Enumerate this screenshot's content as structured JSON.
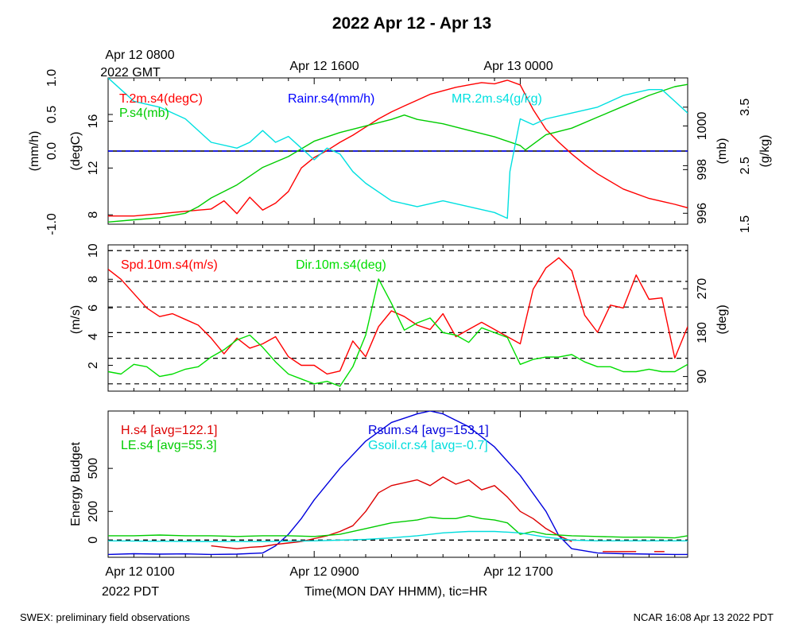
{
  "figure": {
    "title": "2022 Apr 12 - Apr 13",
    "top_axis": {
      "first_tick": "Apr 12 0800",
      "first_tick_line2": "2022 GMT",
      "ticks": [
        "Apr 12 1600",
        "Apr 13 0000"
      ]
    },
    "bottom_axis": {
      "first_tick": "Apr 12 0100",
      "first_tick_line2": "2022 PDT",
      "ticks": [
        "Apr 12 0900",
        "Apr 12 1700"
      ],
      "label": "Time(MON DAY HHMM), tic=HR"
    },
    "footer_left": "SWEX: preliminary field observations",
    "footer_right": "NCAR 16:08 Apr 13 2022 PDT"
  },
  "chart_data": [
    {
      "type": "line",
      "panel": "meteorology",
      "x_unit": "hours since Apr 12 0100 PDT",
      "xlim": [
        0,
        22.5
      ],
      "axes": {
        "rain": {
          "label": "(mm/h)",
          "lim": [
            -1.0,
            1.0
          ],
          "ticks": [
            "-1.0",
            "0.0",
            "0.5",
            "1.0"
          ],
          "tick_values": [
            -1.0,
            0.0,
            0.5,
            1.0
          ],
          "side": "left-outer"
        },
        "temp": {
          "label": "(degC)",
          "lim": [
            7.2,
            19.7
          ],
          "ticks": [
            "8",
            "12",
            "16"
          ],
          "tick_values": [
            8,
            12,
            16
          ],
          "side": "left-inner"
        },
        "press": {
          "label": "(mb)",
          "lim": [
            995.5,
            1002.2
          ],
          "ticks": [
            "996",
            "998",
            "1000"
          ],
          "tick_values": [
            996,
            998,
            1000
          ],
          "side": "right-inner"
        },
        "mr": {
          "label": "(g/kg)",
          "lim": [
            1.5,
            4.0
          ],
          "ticks": [
            "1.5",
            "2.5",
            "3.5"
          ],
          "tick_values": [
            1.5,
            2.5,
            3.5
          ],
          "side": "right-outer"
        }
      },
      "legend": {
        "temp": "T.2m.s4(degC)",
        "press": "P.s4(mb)",
        "rain": "Rainr.s4(mm/h)",
        "mr": "MR.2m.s4(g/kg)"
      },
      "series": [
        {
          "key": "temp",
          "axis": "temp",
          "color": "#ff0000",
          "x": [
            0,
            1,
            2,
            3,
            4,
            4.5,
            5,
            5.5,
            6,
            6.5,
            7,
            7.5,
            8,
            8.5,
            9,
            9.5,
            10,
            10.5,
            11,
            11.5,
            12,
            12.5,
            13,
            13.5,
            14,
            14.5,
            15,
            15.5,
            16,
            16.5,
            17,
            17.5,
            18,
            18.5,
            19,
            20,
            21,
            22,
            22.5
          ],
          "y": [
            7.9,
            7.9,
            8.1,
            8.3,
            8.5,
            9.2,
            8.1,
            9.5,
            8.4,
            9.0,
            10.0,
            12.0,
            12.9,
            13.5,
            14.2,
            14.8,
            15.5,
            16.2,
            16.8,
            17.3,
            17.8,
            18.3,
            18.6,
            18.9,
            19.1,
            19.3,
            19.2,
            19.5,
            19.1,
            17.0,
            15.3,
            14.2,
            13.2,
            12.3,
            11.5,
            10.2,
            9.4,
            8.9,
            8.6
          ]
        },
        {
          "key": "press",
          "axis": "press",
          "color": "#00cc00",
          "x": [
            0,
            1,
            2,
            3,
            3.5,
            4,
            5,
            6,
            7,
            8,
            9,
            10,
            11,
            11.5,
            12,
            13,
            14,
            15,
            16,
            16.2,
            17,
            18,
            19,
            20,
            21,
            22,
            22.5
          ],
          "y": [
            995.6,
            995.7,
            995.8,
            996.0,
            996.3,
            996.7,
            997.3,
            998.1,
            998.6,
            999.3,
            999.7,
            1000.0,
            1000.3,
            1000.5,
            1000.3,
            1000.1,
            999.8,
            999.5,
            999.1,
            998.9,
            999.6,
            999.9,
            1000.4,
            1000.9,
            1001.4,
            1001.8,
            1001.9
          ]
        },
        {
          "key": "rain",
          "axis": "rain",
          "color": "#0000ff",
          "x": [
            0,
            22.5
          ],
          "y": [
            0.0,
            0.0
          ]
        },
        {
          "key": "mr",
          "axis": "mr",
          "color": "#00e0e0",
          "x": [
            0,
            0.5,
            1,
            2,
            3,
            4,
            5,
            5.5,
            6,
            6.5,
            7,
            7.5,
            8,
            8.5,
            9,
            9.5,
            10,
            11,
            12,
            13,
            14,
            15,
            15.5,
            15.6,
            16,
            16.5,
            17,
            18,
            19,
            20,
            21,
            21.5,
            22,
            22.5
          ],
          "y": [
            4.0,
            3.8,
            3.6,
            3.5,
            3.3,
            2.9,
            2.8,
            2.9,
            3.1,
            2.9,
            3.0,
            2.8,
            2.6,
            2.8,
            2.7,
            2.4,
            2.2,
            1.9,
            1.8,
            1.9,
            1.8,
            1.7,
            1.6,
            2.4,
            3.3,
            3.2,
            3.3,
            3.4,
            3.5,
            3.7,
            3.8,
            3.8,
            3.6,
            3.4
          ]
        }
      ]
    },
    {
      "type": "line",
      "panel": "wind",
      "xlim": [
        0,
        22.5
      ],
      "axes": {
        "spd": {
          "label": "(m/s)",
          "lim": [
            0.2,
            10.4
          ],
          "ticks": [
            "2",
            "4",
            "6",
            "8",
            "10"
          ],
          "tick_values": [
            2,
            4,
            6,
            8,
            10
          ],
          "side": "left"
        },
        "dir": {
          "label": "(deg)",
          "lim": [
            60,
            360
          ],
          "ticks": [
            "90",
            "180",
            "270"
          ],
          "tick_values": [
            90,
            180,
            270
          ],
          "side": "right"
        }
      },
      "dashed_gridlines_dir_deg": [
        75,
        127.5,
        180,
        232.5,
        285
      ],
      "dashed_gridlines_spd_ms": [
        10
      ],
      "legend": {
        "spd": "Spd.10m.s4(m/s)",
        "dir": "Dir.10m.s4(deg)"
      },
      "series": [
        {
          "key": "spd",
          "axis": "spd",
          "color": "#ff0000",
          "x": [
            0,
            0.5,
            1,
            1.5,
            2,
            2.5,
            3,
            3.5,
            4,
            4.5,
            5,
            5.5,
            6,
            6.5,
            7,
            7.5,
            8,
            8.5,
            9,
            9.5,
            10,
            10.5,
            11,
            11.5,
            12,
            12.5,
            13,
            13.5,
            14,
            14.5,
            15,
            15.5,
            16,
            16.5,
            17,
            17.5,
            18,
            18.5,
            19,
            19.5,
            20,
            20.5,
            21,
            21.5,
            22,
            22.5
          ],
          "y": [
            8.7,
            8.0,
            7.0,
            6.0,
            5.4,
            5.6,
            5.2,
            4.8,
            3.9,
            2.8,
            3.9,
            3.2,
            3.5,
            4.0,
            2.6,
            2.0,
            2.0,
            1.4,
            1.6,
            3.7,
            2.6,
            4.7,
            5.8,
            5.4,
            4.8,
            4.5,
            5.6,
            4.0,
            4.5,
            5.0,
            4.5,
            4.0,
            3.5,
            7.3,
            8.8,
            9.5,
            8.6,
            5.5,
            4.3,
            6.2,
            6.0,
            8.3,
            6.6,
            6.7,
            2.5,
            4.7
          ]
        },
        {
          "key": "dir",
          "axis": "dir",
          "color": "#00dd00",
          "x": [
            0,
            0.5,
            1,
            1.5,
            2,
            2.5,
            3,
            3.5,
            4,
            4.5,
            5,
            5.5,
            6,
            6.5,
            7,
            7.5,
            8,
            8.5,
            9,
            9.5,
            10,
            10.5,
            11,
            11.5,
            12,
            12.5,
            13,
            13.5,
            14,
            14.5,
            15,
            15.5,
            16,
            16.5,
            17,
            17.5,
            18,
            18.5,
            19,
            19.5,
            20,
            20.5,
            21,
            21.5,
            22,
            22.5
          ],
          "y": [
            100,
            95,
            115,
            110,
            90,
            95,
            105,
            110,
            130,
            145,
            165,
            175,
            150,
            120,
            95,
            85,
            75,
            80,
            70,
            110,
            175,
            290,
            240,
            185,
            200,
            210,
            180,
            175,
            160,
            190,
            180,
            170,
            115,
            125,
            130,
            130,
            135,
            120,
            110,
            110,
            100,
            100,
            105,
            100,
            100,
            115
          ]
        }
      ]
    },
    {
      "type": "line",
      "panel": "energy",
      "xlim": [
        0,
        22.5
      ],
      "axes": {
        "energy": {
          "label": "Energy Budget",
          "lim": [
            -120,
            900
          ],
          "ticks": [
            "0",
            "200",
            "500"
          ],
          "tick_values": [
            0,
            200,
            500
          ],
          "side": "left"
        }
      },
      "dashed_gridlines_wm2": [
        0
      ],
      "legend": {
        "h": "H.s4 [avg=122.1]",
        "le": "LE.s4 [avg=55.3]",
        "rsum": "Rsum.s4 [avg=153.1]",
        "gsoil": "Gsoil.cr.s4 [avg=-0.7]"
      },
      "series": [
        {
          "key": "rsum",
          "axis": "energy",
          "color": "#0000dd",
          "x": [
            0,
            1,
            2,
            3,
            4,
            5,
            6,
            6.5,
            7,
            7.5,
            8,
            9,
            10,
            11,
            12,
            12.5,
            13,
            14,
            15,
            16,
            17,
            17.5,
            18,
            19,
            20,
            21,
            22,
            22.5
          ],
          "y": [
            -100,
            -95,
            -98,
            -96,
            -100,
            -98,
            -90,
            -40,
            40,
            150,
            280,
            500,
            690,
            820,
            880,
            900,
            880,
            790,
            650,
            450,
            200,
            30,
            -60,
            -90,
            -95,
            -98,
            -100,
            -100
          ]
        },
        {
          "key": "h",
          "axis": "energy",
          "color": "#dd0000",
          "x": [
            4,
            4.5,
            5,
            5.5,
            6,
            6.5,
            7,
            7.5,
            8,
            8.5,
            9,
            9.5,
            10,
            10.5,
            11,
            11.5,
            12,
            12.5,
            13,
            13.5,
            14,
            14.5,
            15,
            15.5,
            16,
            16.5,
            17,
            17.5,
            18
          ],
          "y": [
            -40,
            -50,
            -60,
            -50,
            -45,
            -30,
            -20,
            -10,
            10,
            30,
            60,
            100,
            200,
            330,
            380,
            400,
            420,
            380,
            440,
            390,
            420,
            350,
            380,
            300,
            200,
            150,
            80,
            30,
            -10
          ]
        },
        {
          "key": "h_night",
          "axis": "energy",
          "color": "#dd0000",
          "x": [
            19.2,
            20.5
          ],
          "y": [
            -80,
            -80
          ]
        },
        {
          "key": "h_night2",
          "axis": "energy",
          "color": "#dd0000",
          "x": [
            21.2,
            21.6
          ],
          "y": [
            -80,
            -80
          ]
        },
        {
          "key": "le",
          "axis": "energy",
          "color": "#00cc00",
          "x": [
            0,
            1,
            2,
            3,
            4,
            5,
            6,
            7,
            8,
            9,
            10,
            11,
            12,
            12.5,
            13,
            13.5,
            14,
            14.5,
            15,
            15.5,
            16,
            16.5,
            17,
            18,
            19,
            20,
            21,
            22,
            22.5
          ],
          "y": [
            30,
            30,
            35,
            30,
            30,
            25,
            30,
            30,
            25,
            40,
            80,
            120,
            140,
            160,
            150,
            150,
            170,
            150,
            140,
            120,
            40,
            60,
            40,
            30,
            25,
            20,
            20,
            15,
            30
          ]
        },
        {
          "key": "gsoil",
          "axis": "energy",
          "color": "#00dddd",
          "x": [
            0,
            2,
            4,
            6,
            8,
            10,
            11,
            12,
            13,
            14,
            15,
            16,
            17,
            18,
            19,
            20,
            22,
            22.5
          ],
          "y": [
            -5,
            -8,
            -10,
            -10,
            -5,
            5,
            15,
            30,
            50,
            60,
            60,
            50,
            20,
            0,
            -5,
            -5,
            -5,
            -5
          ]
        }
      ]
    }
  ]
}
